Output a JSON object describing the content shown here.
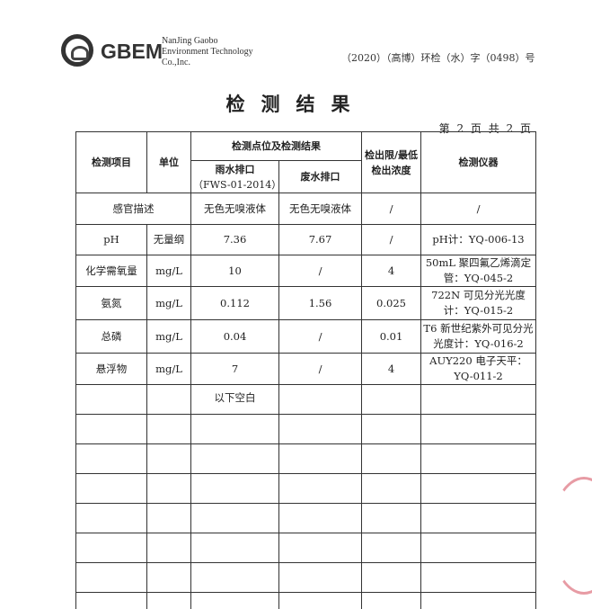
{
  "header": {
    "brand": "GBEM",
    "company": [
      "NanJing Gaobo",
      "Environment Technology",
      "Co.,Inc."
    ],
    "doc_number": "（2020）（高博）环检（水）字（0498）号"
  },
  "title": "检测结果",
  "page_info": "第 2 页 共 2 页",
  "table": {
    "headers": {
      "item": "检测项目",
      "unit": "单位",
      "results": "检测点位及检测结果",
      "point1": "雨水排口",
      "point1_code": "（FWS-01-2014）",
      "point2": "废水排口",
      "limit": "检出限/最低检出浓度",
      "instrument": "检测仪器"
    },
    "sensory": {
      "label": "感官描述",
      "p1": "无色无嗅液体",
      "p2": "无色无嗅液体",
      "limit": "/",
      "instrument": "/"
    },
    "rows": [
      {
        "item": "pH",
        "unit": "无量纲",
        "p1": "7.36",
        "p2": "7.67",
        "limit": "/",
        "instrument": "pH计：YQ-006-13"
      },
      {
        "item": "化学需氧量",
        "unit": "mg/L",
        "p1": "10",
        "p2": "/",
        "limit": "4",
        "instrument": "50mL 聚四氟乙烯滴定管：YQ-045-2"
      },
      {
        "item": "氨氮",
        "unit": "mg/L",
        "p1": "0.112",
        "p2": "1.56",
        "limit": "0.025",
        "instrument": "722N 可见分光光度计：YQ-015-2"
      },
      {
        "item": "总磷",
        "unit": "mg/L",
        "p1": "0.04",
        "p2": "/",
        "limit": "0.01",
        "instrument": "T6 新世纪紫外可见分光光度计：YQ-016-2"
      },
      {
        "item": "悬浮物",
        "unit": "mg/L",
        "p1": "7",
        "p2": "/",
        "limit": "4",
        "instrument": "AUY220 电子天平：YQ-011-2"
      }
    ],
    "blank_note": "以下空白"
  },
  "stamp_color": "#e07a86"
}
